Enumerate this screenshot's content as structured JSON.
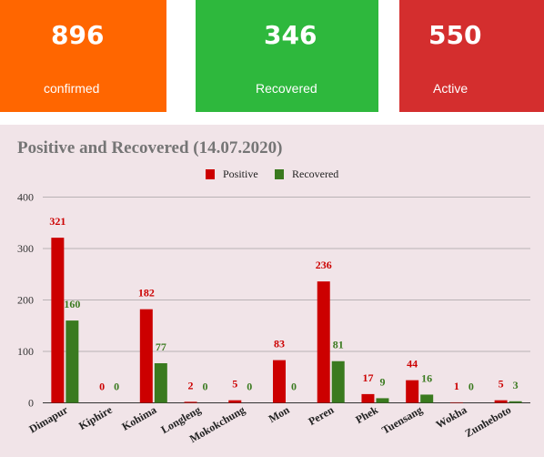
{
  "stats": {
    "confirmed": {
      "value": "896",
      "label": "confirmed",
      "color": "#ff6600"
    },
    "recovered": {
      "value": "346",
      "label": "Recovered",
      "color": "#2eb83d"
    },
    "active": {
      "value": "550",
      "label": "Active",
      "color": "#d42e2e"
    }
  },
  "chart_data": {
    "type": "bar",
    "title": "Positive and Recovered (14.07.2020)",
    "xlabel": "",
    "ylabel": "",
    "ylim": [
      0,
      400
    ],
    "yticks": [
      0,
      100,
      200,
      300,
      400
    ],
    "grid": true,
    "legend_position": "top",
    "categories": [
      "Dimapur",
      "Kiphire",
      "Kohima",
      "Longleng",
      "Mokokchung",
      "Mon",
      "Peren",
      "Phek",
      "Tuensang",
      "Wokha",
      "Zunheboto"
    ],
    "series": [
      {
        "name": "Positive",
        "color": "#cc0000",
        "values": [
          321,
          0,
          182,
          2,
          5,
          83,
          236,
          17,
          44,
          1,
          5
        ]
      },
      {
        "name": "Recovered",
        "color": "#3a7a1f",
        "values": [
          160,
          0,
          77,
          0,
          0,
          0,
          81,
          9,
          16,
          0,
          3
        ]
      }
    ]
  }
}
